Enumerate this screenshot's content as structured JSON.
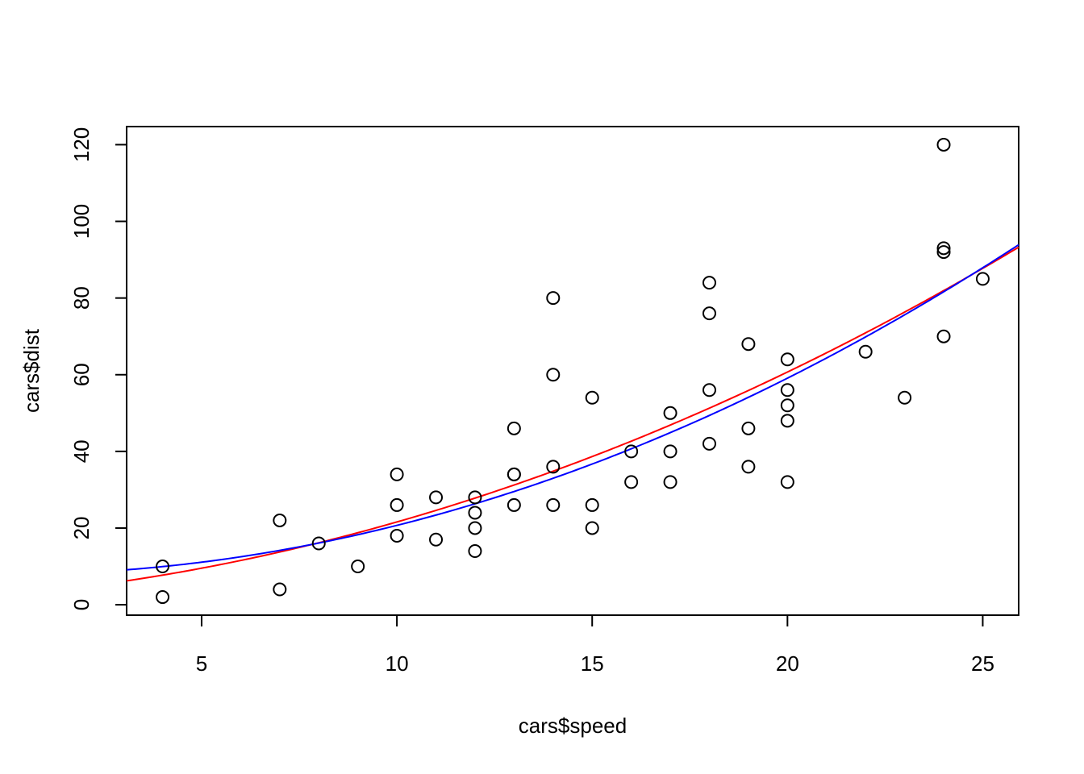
{
  "chart_data": {
    "type": "scatter",
    "title": "",
    "xlabel": "cars$speed",
    "ylabel": "cars$dist",
    "xlim": [
      3.08,
      25.92
    ],
    "ylim": [
      -2.72,
      124.72
    ],
    "xticks": [
      5,
      10,
      15,
      20,
      25
    ],
    "yticks": [
      0,
      20,
      40,
      60,
      80,
      100,
      120
    ],
    "grid": false,
    "points": {
      "x": [
        4,
        4,
        7,
        7,
        8,
        9,
        10,
        10,
        10,
        11,
        11,
        12,
        12,
        12,
        12,
        13,
        13,
        13,
        13,
        14,
        14,
        14,
        14,
        15,
        15,
        15,
        16,
        16,
        17,
        17,
        17,
        18,
        18,
        18,
        18,
        19,
        19,
        19,
        20,
        20,
        20,
        20,
        20,
        22,
        23,
        24,
        24,
        24,
        24,
        25
      ],
      "y": [
        2,
        10,
        4,
        22,
        16,
        10,
        18,
        26,
        34,
        17,
        28,
        14,
        20,
        24,
        28,
        26,
        34,
        34,
        46,
        26,
        36,
        60,
        80,
        20,
        26,
        54,
        32,
        40,
        32,
        40,
        50,
        42,
        56,
        76,
        84,
        36,
        46,
        68,
        32,
        48,
        52,
        56,
        64,
        66,
        54,
        70,
        92,
        93,
        120,
        85
      ]
    },
    "curves": [
      {
        "color": "#ff0000",
        "coef": [
          2.4701,
          0.9133,
          0.0999
        ]
      },
      {
        "color": "#0000ff",
        "coef": [
          7.9,
          0.0,
          0.128
        ]
      }
    ]
  }
}
